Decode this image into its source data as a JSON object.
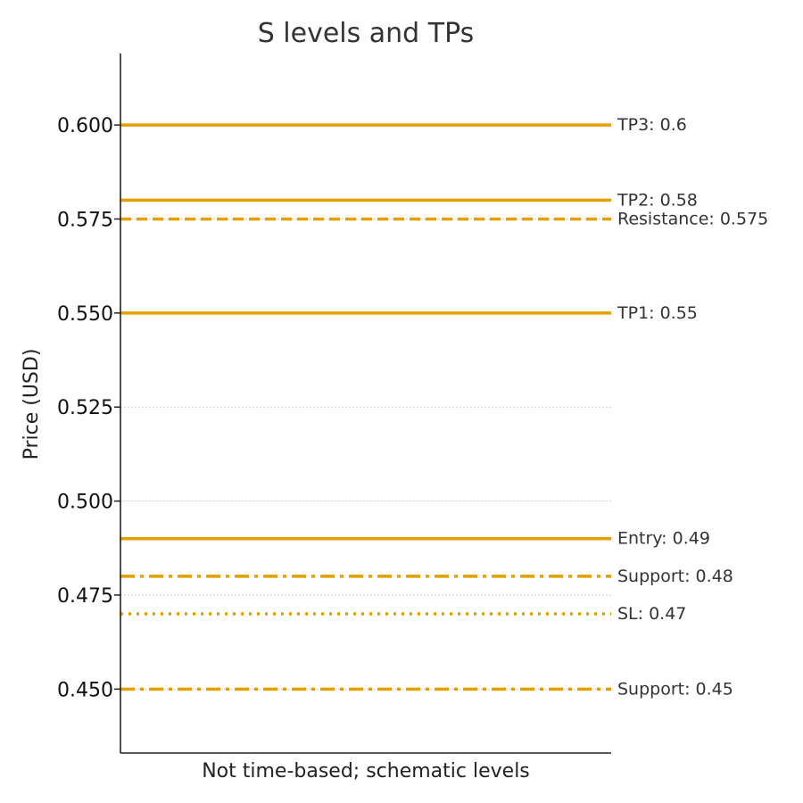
{
  "chart_data": {
    "type": "line",
    "title": "S levels and TPs",
    "xlabel": "Not time-based; schematic levels",
    "ylabel": "Price (USD)",
    "ylim": [
      0.433,
      0.619
    ],
    "yticks": [
      0.45,
      0.475,
      0.5,
      0.525,
      0.55,
      0.575,
      0.6
    ],
    "ytick_labels": [
      "0.450",
      "0.475",
      "0.500",
      "0.525",
      "0.550",
      "0.575",
      "0.600"
    ],
    "grid": "horizontal dotted",
    "line_color": "#E69F00",
    "levels": [
      {
        "label": "TP3: 0.6",
        "value": 0.6,
        "style": "solid"
      },
      {
        "label": "TP2: 0.58",
        "value": 0.58,
        "style": "solid"
      },
      {
        "label": "Resistance: 0.575",
        "value": 0.575,
        "style": "dashed"
      },
      {
        "label": "TP1: 0.55",
        "value": 0.55,
        "style": "solid"
      },
      {
        "label": "Entry: 0.49",
        "value": 0.49,
        "style": "solid"
      },
      {
        "label": "Support: 0.48",
        "value": 0.48,
        "style": "dashdot"
      },
      {
        "label": "SL: 0.47",
        "value": 0.47,
        "style": "dotted"
      },
      {
        "label": "Support: 0.45",
        "value": 0.45,
        "style": "dashdot"
      }
    ]
  }
}
